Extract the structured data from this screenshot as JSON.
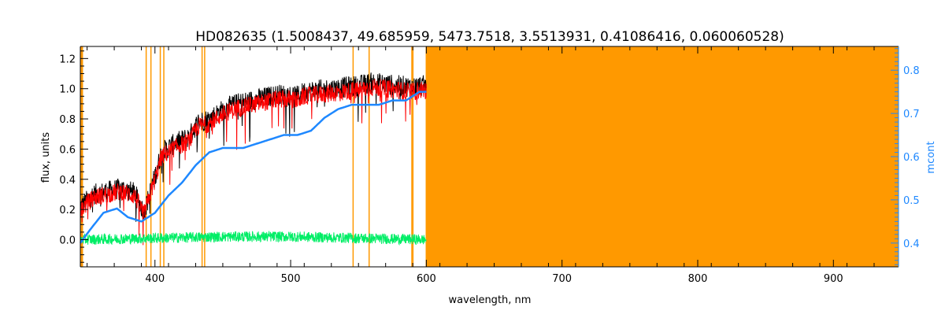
{
  "chart_data": {
    "type": "line",
    "title": "HD082635    (1.5008437, 49.685959, 5473.7518, 3.5513931, 0.41086416, 0.060060528)",
    "xlabel": "wavelength, nm",
    "ylabel": "flux, units",
    "y2label": "mcont",
    "xlim": [
      345,
      948
    ],
    "ylim": [
      -0.18,
      1.28
    ],
    "y2lim": [
      0.345,
      0.855
    ],
    "x_ticks": [
      400,
      500,
      600,
      700,
      800,
      900
    ],
    "y_ticks": [
      0.0,
      0.2,
      0.4,
      0.6,
      0.8,
      1.0,
      1.2
    ],
    "y2_ticks": [
      0.4,
      0.5,
      0.6,
      0.7,
      0.8
    ],
    "grid": false,
    "colors": {
      "observed": "#000000",
      "model": "#ff0000",
      "residual": "#00ee66",
      "continuum": "#1e88ff",
      "mask": "#ff9900",
      "axis": "#000000",
      "axis2": "#1e88ff"
    },
    "masked_regions_nm": [
      [
        345,
        347
      ],
      [
        393.1,
        393.8
      ],
      [
        396.6,
        397.3
      ],
      [
        403.5,
        404.2
      ],
      [
        406.1,
        406.8
      ],
      [
        434.3,
        434.9
      ],
      [
        436.2,
        436.9
      ],
      [
        545.6,
        546.3
      ],
      [
        557.4,
        558.1
      ],
      [
        588.9,
        589.4
      ],
      [
        589.7,
        590.2
      ],
      [
        599.5,
        948
      ]
    ],
    "series": [
      {
        "role": "observed",
        "x": [
          345,
          355,
          365,
          375,
          385,
          392,
          400,
          405,
          415,
          425,
          432,
          440,
          450,
          460,
          470,
          480,
          490,
          500,
          505,
          510,
          520,
          530,
          540,
          550,
          560,
          570,
          580,
          590,
          595,
          600
        ],
        "values": [
          0.22,
          0.3,
          0.32,
          0.34,
          0.31,
          0.18,
          0.42,
          0.58,
          0.64,
          0.68,
          0.78,
          0.8,
          0.86,
          0.9,
          0.92,
          0.94,
          0.96,
          0.96,
          0.95,
          0.98,
          0.99,
          1.0,
          1.01,
          1.02,
          1.04,
          1.03,
          1.02,
          1.01,
          1.02,
          1.02
        ],
        "noise": 0.07
      },
      {
        "role": "model",
        "x": [
          345,
          355,
          365,
          375,
          385,
          392,
          400,
          405,
          415,
          425,
          432,
          440,
          450,
          460,
          470,
          480,
          490,
          500,
          505,
          510,
          520,
          530,
          540,
          550,
          560,
          570,
          580,
          590,
          595,
          600
        ],
        "values": [
          0.2,
          0.28,
          0.3,
          0.32,
          0.29,
          0.17,
          0.4,
          0.55,
          0.61,
          0.65,
          0.75,
          0.77,
          0.83,
          0.87,
          0.89,
          0.91,
          0.93,
          0.93,
          0.92,
          0.95,
          0.96,
          0.97,
          0.98,
          0.99,
          1.01,
          1.0,
          0.99,
          0.98,
          0.99,
          0.99
        ],
        "noise": 0.06
      },
      {
        "role": "residual",
        "x": [
          345,
          400,
          450,
          500,
          550,
          600
        ],
        "values": [
          0.0,
          0.01,
          0.02,
          0.02,
          0.01,
          0.0
        ],
        "noise": 0.035
      },
      {
        "role": "continuum",
        "axis": "right",
        "x": [
          345,
          352,
          362,
          372,
          380,
          390,
          400,
          410,
          420,
          430,
          440,
          450,
          460,
          465,
          475,
          485,
          495,
          505,
          515,
          525,
          535,
          545,
          555,
          565,
          575,
          585,
          595,
          600
        ],
        "values": [
          0.4,
          0.43,
          0.47,
          0.48,
          0.46,
          0.45,
          0.47,
          0.51,
          0.54,
          0.58,
          0.61,
          0.62,
          0.62,
          0.62,
          0.63,
          0.64,
          0.65,
          0.65,
          0.66,
          0.69,
          0.71,
          0.72,
          0.72,
          0.72,
          0.73,
          0.73,
          0.75,
          0.75
        ]
      }
    ]
  }
}
